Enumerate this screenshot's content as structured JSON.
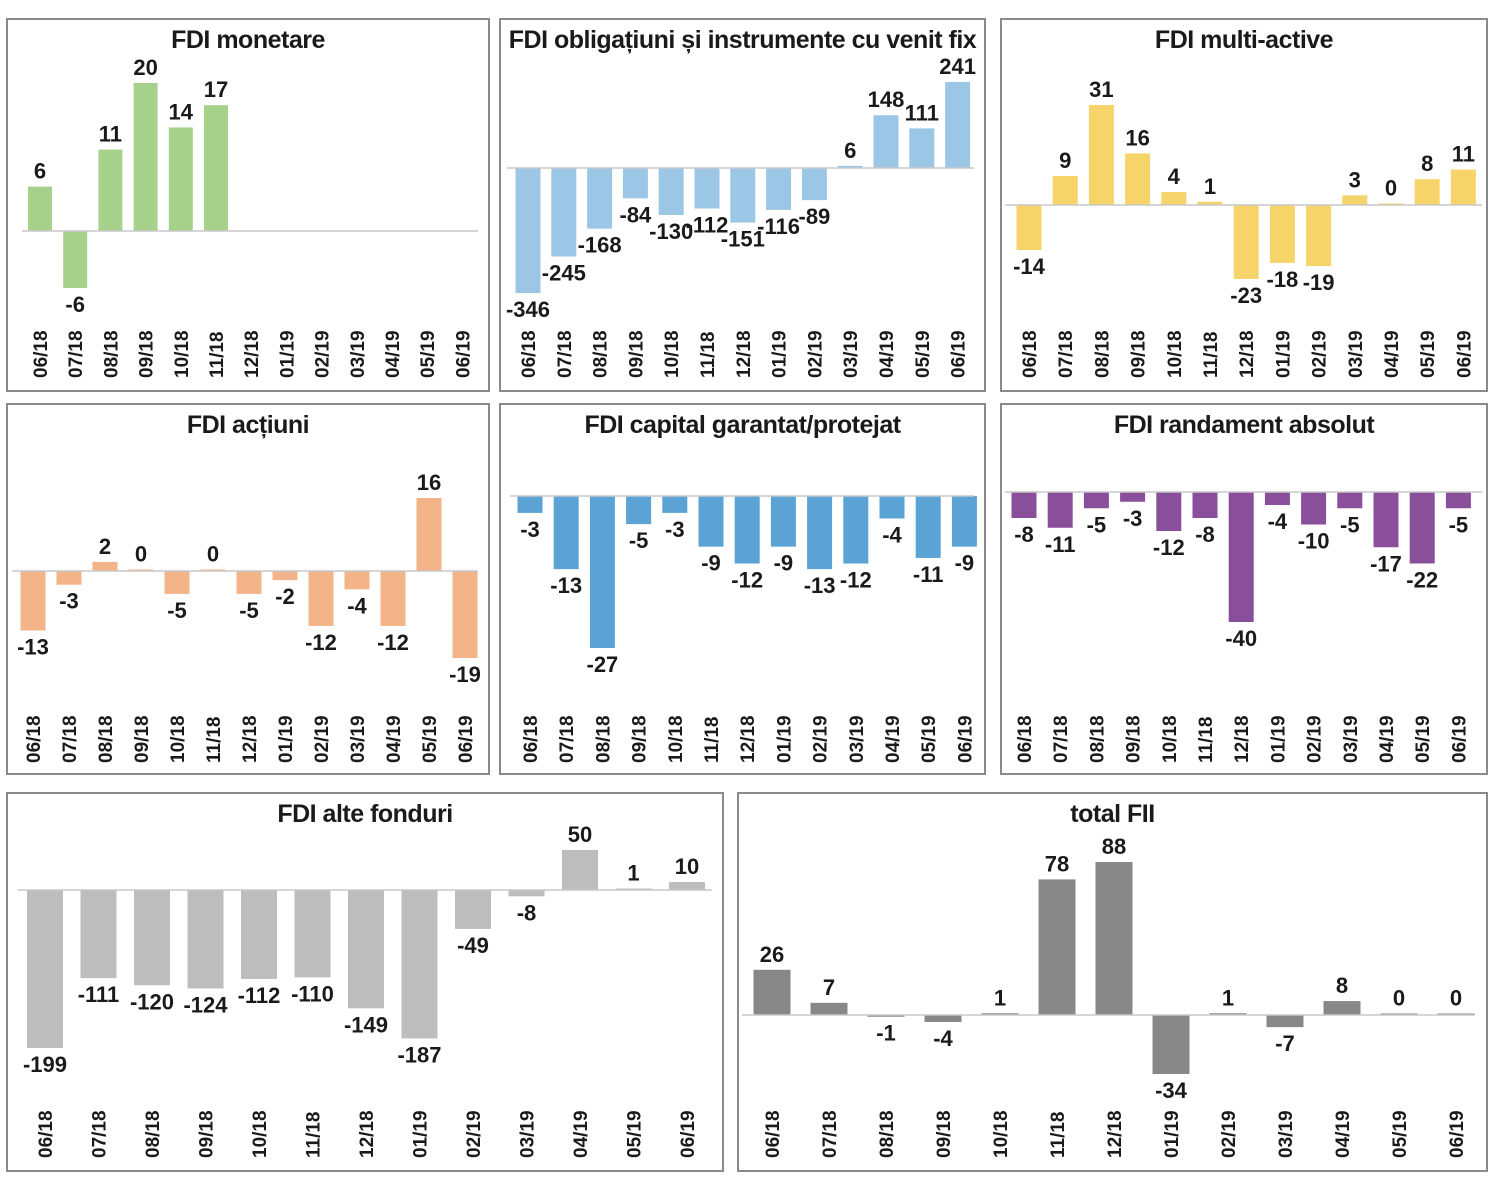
{
  "chart_data": [
    {
      "type": "bar",
      "title": "FDI monetare",
      "color": "#a6d18b",
      "categories": [
        "06/18",
        "07/18",
        "08/18",
        "09/18",
        "10/18",
        "11/18",
        "12/18",
        "01/19",
        "02/19",
        "03/19",
        "04/19",
        "05/19",
        "06/19"
      ],
      "values": [
        6,
        -6,
        11,
        20,
        14,
        17,
        null,
        null,
        null,
        null,
        null,
        null,
        null
      ],
      "labels": [
        "6",
        "-6",
        "11",
        "20",
        "14",
        "17",
        "",
        "",
        "",
        "",
        "",
        "",
        ""
      ]
    },
    {
      "type": "bar",
      "title": "FDI obligațiuni și instrumente cu venit fix",
      "color": "#9cc6e6",
      "categories": [
        "06/18",
        "07/18",
        "08/18",
        "09/18",
        "10/18",
        "11/18",
        "12/18",
        "01/19",
        "02/19",
        "03/19",
        "04/19",
        "05/19",
        "06/19"
      ],
      "values": [
        -346,
        -245,
        -168,
        -84,
        -130,
        -112,
        -151,
        -116,
        -89,
        6,
        148,
        111,
        241
      ],
      "labels": [
        "-346",
        "-245",
        "-168",
        "-84",
        "-130",
        "-112",
        "-151",
        "-116",
        "-89",
        "6",
        "148",
        "111",
        "241"
      ]
    },
    {
      "type": "bar",
      "title": "FDI multi-active",
      "color": "#f7d46a",
      "categories": [
        "06/18",
        "07/18",
        "08/18",
        "09/18",
        "10/18",
        "11/18",
        "12/18",
        "01/19",
        "02/19",
        "03/19",
        "04/19",
        "05/19",
        "06/19"
      ],
      "values": [
        -14,
        9,
        31,
        16,
        4,
        1,
        -23,
        -18,
        -19,
        3,
        0,
        8,
        11
      ],
      "labels": [
        "-14",
        "9",
        "31",
        "16",
        "4",
        "1",
        "-23",
        "-18",
        "-19",
        "3",
        "0",
        "8",
        "11"
      ]
    },
    {
      "type": "bar",
      "title": "FDI acțiuni",
      "color": "#f2b488",
      "categories": [
        "06/18",
        "07/18",
        "08/18",
        "09/18",
        "10/18",
        "11/18",
        "12/18",
        "01/19",
        "02/19",
        "03/19",
        "04/19",
        "05/19",
        "06/19"
      ],
      "values": [
        -13,
        -3,
        2,
        0,
        -5,
        0,
        -5,
        -2,
        -12,
        -4,
        -12,
        16,
        -19
      ],
      "labels": [
        "-13",
        "-3",
        "2",
        "0",
        "-5",
        "0",
        "-5",
        "-2",
        "-12",
        "-4",
        "-12",
        "16",
        "-19"
      ]
    },
    {
      "type": "bar",
      "title": "FDI capital garantat/protejat",
      "color": "#5ba3d4",
      "categories": [
        "06/18",
        "07/18",
        "08/18",
        "09/18",
        "10/18",
        "11/18",
        "12/18",
        "01/19",
        "02/19",
        "03/19",
        "04/19",
        "05/19",
        "06/19"
      ],
      "values": [
        -3,
        -13,
        -27,
        -5,
        -3,
        -9,
        -12,
        -9,
        -13,
        -12,
        -4,
        -11,
        -9
      ],
      "labels": [
        "-3",
        "-13",
        "-27",
        "-5",
        "-3",
        "-9",
        "-12",
        "-9",
        "-13",
        "-12",
        "-4",
        "-11",
        "-9"
      ]
    },
    {
      "type": "bar",
      "title": "FDI randament absolut",
      "color": "#8a4f9a",
      "categories": [
        "06/18",
        "07/18",
        "08/18",
        "09/18",
        "10/18",
        "11/18",
        "12/18",
        "01/19",
        "02/19",
        "03/19",
        "04/19",
        "05/19",
        "06/19"
      ],
      "values": [
        -8,
        -11,
        -5,
        -3,
        -12,
        -8,
        -40,
        -4,
        -10,
        -5,
        -17,
        -22,
        -5
      ],
      "labels": [
        "-8",
        "-11",
        "-5",
        "-3",
        "-12",
        "-8",
        "-40",
        "-4",
        "-10",
        "-5",
        "-17",
        "-22",
        "-5"
      ]
    },
    {
      "type": "bar",
      "title": "FDI alte fonduri",
      "color": "#bdbdbd",
      "categories": [
        "06/18",
        "07/18",
        "08/18",
        "09/18",
        "10/18",
        "11/18",
        "12/18",
        "01/19",
        "02/19",
        "03/19",
        "04/19",
        "05/19",
        "06/19"
      ],
      "values": [
        -199,
        -111,
        -120,
        -124,
        -112,
        -110,
        -149,
        -187,
        -49,
        -8,
        50,
        1,
        10
      ],
      "labels": [
        "-199",
        "-111",
        "-120",
        "-124",
        "-112",
        "-110",
        "-149",
        "-187",
        "-49",
        "-8",
        "50",
        "1",
        "10"
      ]
    },
    {
      "type": "bar",
      "title": "total FII",
      "color": "#888888",
      "categories": [
        "06/18",
        "07/18",
        "08/18",
        "09/18",
        "10/18",
        "11/18",
        "12/18",
        "01/19",
        "02/19",
        "03/19",
        "04/19",
        "05/19",
        "06/19"
      ],
      "values": [
        26,
        7,
        -1,
        -4,
        1,
        78,
        88,
        -34,
        1,
        -7,
        8,
        0,
        0
      ],
      "labels": [
        "26",
        "7",
        "-1",
        "-4",
        "1",
        "78",
        "88",
        "-34",
        "1",
        "-7",
        "8",
        "0",
        "0"
      ]
    }
  ]
}
